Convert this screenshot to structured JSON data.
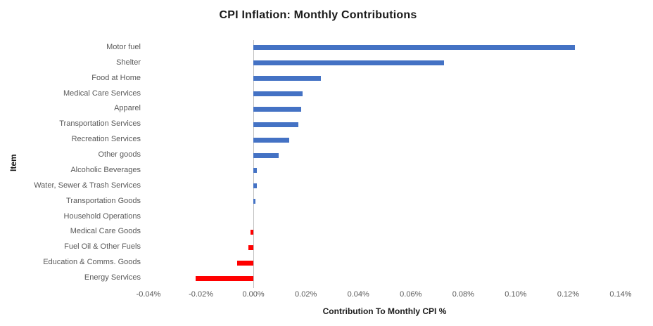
{
  "chart_data": {
    "type": "bar",
    "orientation": "horizontal",
    "title": "CPI Inflation: Monthly Contributions",
    "xlabel": "Contribution To Monthly CPI %",
    "ylabel": "Item",
    "categories": [
      "Motor fuel",
      "Shelter",
      "Food at Home",
      "Medical Care Services",
      "Apparel",
      "Transportation Services",
      "Recreation Services",
      "Other goods",
      "Alcoholic Beverages",
      "Water, Sewer & Trash Services",
      "Transportation Goods",
      "Household Operations",
      "Medical Care Goods",
      "Fuel Oil & Other Fuels",
      "Education & Comms. Goods",
      "Energy Services"
    ],
    "values": [
      0.1225,
      0.0727,
      0.0256,
      0.0187,
      0.0181,
      0.0171,
      0.0136,
      0.0097,
      0.0013,
      0.0013,
      0.0008,
      0,
      -0.0011,
      -0.0018,
      -0.0062,
      -0.0219
    ],
    "value_unit": "%",
    "xlim": [
      -0.04,
      0.14
    ],
    "xticks": [
      -0.04,
      -0.02,
      0,
      0.02,
      0.04,
      0.06,
      0.08,
      0.1,
      0.12,
      0.14
    ],
    "xtick_labels": [
      "-0.04%",
      "-0.02%",
      "0.00%",
      "0.02%",
      "0.04%",
      "0.06%",
      "0.08%",
      "0.10%",
      "0.12%",
      "0.14%"
    ],
    "positive_color": "#4472C4",
    "negative_color": "#FF0000",
    "grid": false,
    "legend": false
  },
  "colors": {
    "label_gray": "#595959",
    "axis_line": "#BFBFBF",
    "title_color": "#1a1a1a"
  }
}
